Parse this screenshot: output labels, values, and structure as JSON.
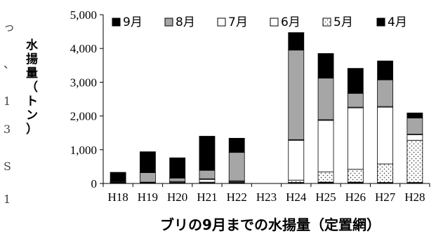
{
  "edge_text": [
    "っ",
    "、",
    "1",
    "3",
    "S",
    "1"
  ],
  "chart_data": {
    "type": "bar",
    "stacked": true,
    "title": "ブリの9月までの水揚量（定置網）",
    "xlabel": "",
    "ylabel": "水揚量（トン）",
    "ylim": [
      0,
      5000
    ],
    "yticks": [
      0,
      1000,
      2000,
      3000,
      4000,
      5000
    ],
    "ytick_labels": [
      "0",
      "1,000",
      "2,000",
      "3,000",
      "4,000",
      "5,000"
    ],
    "grid": false,
    "legend_position": "top",
    "categories": [
      "H18",
      "H19",
      "H20",
      "H21",
      "H22",
      "H23",
      "H24",
      "H25",
      "H26",
      "H27",
      "H28"
    ],
    "series": [
      {
        "name": "4月",
        "pattern": "black",
        "values": [
          10,
          10,
          10,
          20,
          20,
          0,
          30,
          40,
          40,
          30,
          30
        ]
      },
      {
        "name": "5月",
        "pattern": "dots",
        "values": [
          10,
          10,
          10,
          20,
          20,
          0,
          70,
          300,
          380,
          550,
          1250
        ]
      },
      {
        "name": "6月",
        "pattern": "white",
        "values": [
          10,
          10,
          20,
          80,
          20,
          0,
          1180,
          1530,
          1820,
          1680,
          160
        ]
      },
      {
        "name": "7月",
        "pattern": "white",
        "values": [
          10,
          10,
          20,
          20,
          20,
          0,
          20,
          20,
          20,
          20,
          20
        ]
      },
      {
        "name": "8月",
        "pattern": "gray",
        "values": [
          20,
          280,
          100,
          250,
          840,
          0,
          2650,
          1230,
          410,
          790,
          480
        ]
      },
      {
        "name": "9月",
        "pattern": "black",
        "values": [
          270,
          620,
          600,
          1010,
          420,
          0,
          520,
          730,
          740,
          560,
          150
        ]
      }
    ],
    "colors": {
      "black": "#000000",
      "gray": "#a6a6a6",
      "white": "#ffffff",
      "outline": "#000000"
    }
  }
}
